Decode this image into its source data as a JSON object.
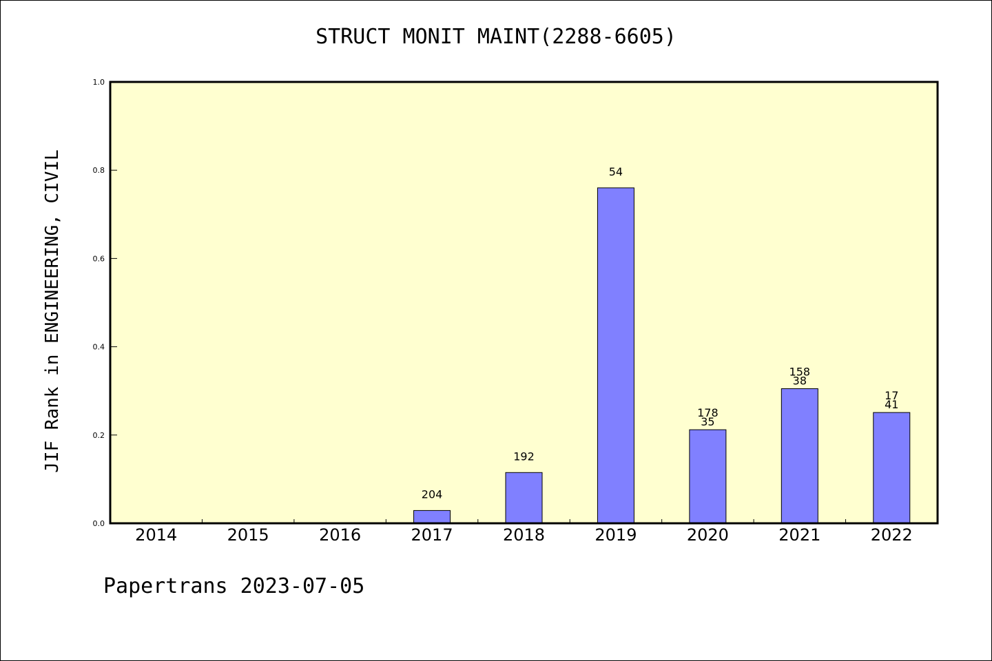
{
  "chart_data": {
    "type": "bar",
    "title": "STRUCT MONIT MAINT(2288-6605)",
    "ylabel": "JIF Rank in ENGINEERING, CIVIL",
    "xlabel": "",
    "ylim": [
      0,
      1.0
    ],
    "yticks": [
      "0.0",
      "0.2",
      "0.4",
      "0.6",
      "0.8",
      "1.0"
    ],
    "categories": [
      "2014",
      "2015",
      "2016",
      "2017",
      "2018",
      "2019",
      "2020",
      "2021",
      "2022"
    ],
    "values": [
      0,
      0,
      0,
      0.029,
      0.115,
      0.76,
      0.212,
      0.305,
      0.251
    ],
    "labels": [
      [],
      [],
      [],
      [
        "204"
      ],
      [
        "192"
      ],
      [
        "54"
      ],
      [
        "178",
        "35"
      ],
      [
        "158",
        "38"
      ],
      [
        "17",
        "41"
      ]
    ],
    "bar_color": "#8080ff",
    "plot_background": "#ffffd0",
    "grid": false
  },
  "footer": "Papertrans 2023-07-05"
}
